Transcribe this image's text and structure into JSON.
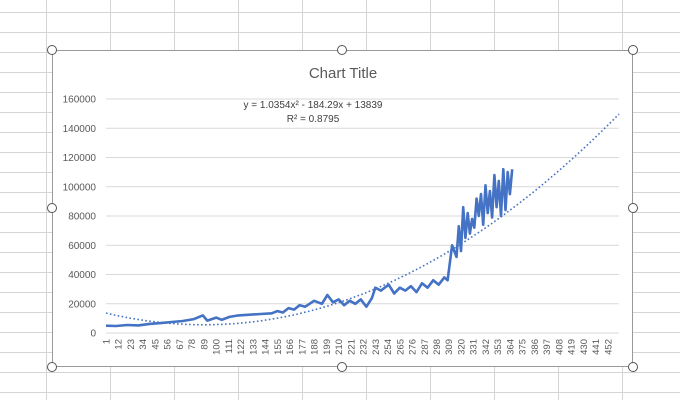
{
  "chart_data": {
    "type": "line",
    "title": "Chart Title",
    "xlabel": "",
    "ylabel": "",
    "ylim": [
      0,
      160000
    ],
    "y_ticks": [
      "0",
      "20000",
      "40000",
      "60000",
      "80000",
      "100000",
      "120000",
      "140000",
      "160000"
    ],
    "x_range": [
      1,
      462
    ],
    "x_ticks": [
      "1",
      "12",
      "23",
      "34",
      "45",
      "56",
      "67",
      "78",
      "89",
      "100",
      "111",
      "122",
      "133",
      "144",
      "155",
      "166",
      "177",
      "188",
      "199",
      "210",
      "221",
      "232",
      "243",
      "254",
      "265",
      "276",
      "287",
      "298",
      "309",
      "320",
      "331",
      "342",
      "353",
      "364",
      "375",
      "386",
      "397",
      "408",
      "419",
      "430",
      "441",
      "452"
    ],
    "grid": "horizontal",
    "legend": "none",
    "series": [
      {
        "color": "#4472C4",
        "style": "solid",
        "x": [
          1,
          10,
          20,
          30,
          40,
          50,
          60,
          70,
          80,
          88,
          92,
          100,
          105,
          112,
          120,
          130,
          140,
          150,
          155,
          160,
          165,
          170,
          175,
          180,
          188,
          195,
          200,
          205,
          210,
          215,
          220,
          225,
          230,
          235,
          240,
          243,
          248,
          255,
          260,
          265,
          270,
          275,
          280,
          285,
          290,
          295,
          300,
          305,
          308,
          312,
          316,
          318,
          320,
          322,
          324,
          326,
          328,
          330,
          332,
          334,
          336,
          338,
          340,
          342,
          344,
          346,
          348,
          350,
          352,
          354,
          356,
          358,
          360,
          362,
          364,
          366
        ],
        "y": [
          5000,
          4800,
          5500,
          5200,
          6200,
          6800,
          7500,
          8200,
          9500,
          12000,
          8500,
          10500,
          9000,
          11000,
          12000,
          12500,
          13000,
          13500,
          15000,
          14000,
          17000,
          16000,
          19000,
          18000,
          22000,
          20000,
          26000,
          21000,
          23000,
          19000,
          22000,
          20000,
          23000,
          18000,
          24000,
          31000,
          29000,
          33000,
          27000,
          31000,
          29000,
          32000,
          28000,
          34000,
          31000,
          36000,
          33000,
          38000,
          36000,
          60000,
          52000,
          73000,
          56000,
          86000,
          65000,
          82000,
          68000,
          78000,
          72000,
          92000,
          80000,
          95000,
          74000,
          101000,
          82000,
          97000,
          79000,
          108000,
          86000,
          104000,
          80000,
          112000,
          84000,
          110000,
          95000,
          112000
        ]
      }
    ],
    "trendline": {
      "type": "polynomial-2",
      "coefficients": [
        1.0354,
        -184.29,
        13839
      ],
      "style": "dotted",
      "color": "#4472C4",
      "equation_label": "y = 1.0354x² - 184.29x + 13839",
      "r2_label": "R² = 0.8795"
    }
  }
}
